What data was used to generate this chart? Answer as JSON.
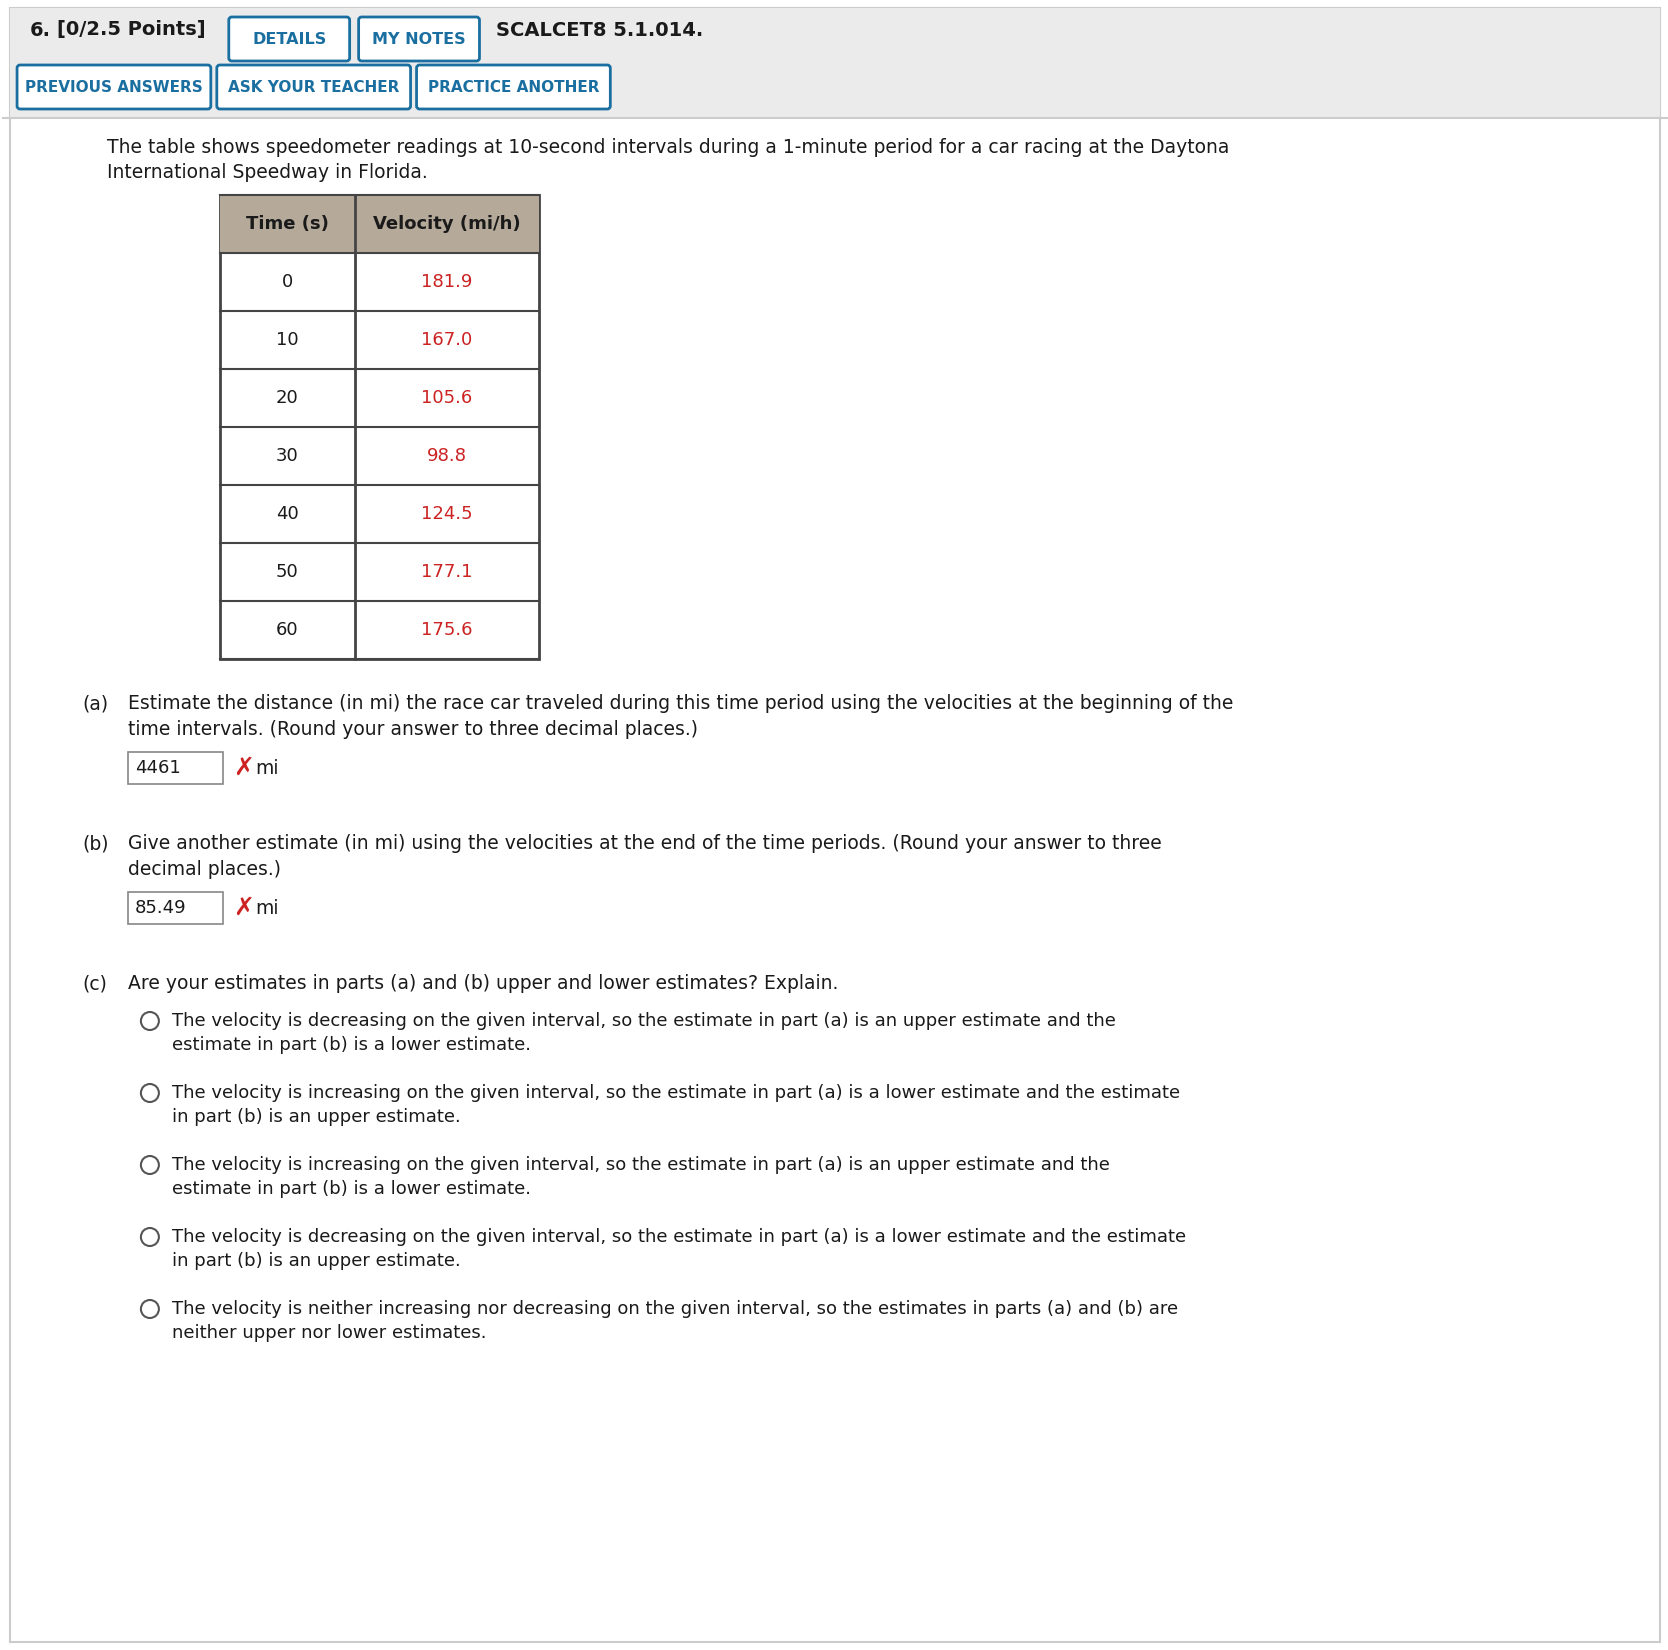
{
  "title_number": "6.",
  "title_points": "[0/2.5 Points]",
  "scalcet": "SCALCET8 5.1.014.",
  "btn_details": "DETAILS",
  "btn_my_notes": "MY NOTES",
  "btn_prev_answers": "PREVIOUS ANSWERS",
  "btn_ask_teacher": "ASK YOUR TEACHER",
  "btn_practice": "PRACTICE ANOTHER",
  "intro_text_line1": "The table shows speedometer readings at 10-second intervals during a 1-minute period for a car racing at the Daytona",
  "intro_text_line2": "International Speedway in Florida.",
  "table_headers": [
    "Time (s)",
    "Velocity (mi/h)"
  ],
  "table_times": [
    "0",
    "10",
    "20",
    "30",
    "40",
    "50",
    "60"
  ],
  "table_velocities": [
    "181.9",
    "167.0",
    "105.6",
    "98.8",
    "124.5",
    "177.1",
    "175.6"
  ],
  "part_a_label": "(a)",
  "part_a_text_line1": "Estimate the distance (in mi) the race car traveled during this time period using the velocities at the beginning of the",
  "part_a_text_line2": "time intervals. (Round your answer to three decimal places.)",
  "part_a_answer": "4461",
  "part_a_unit": "mi",
  "part_b_label": "(b)",
  "part_b_text_line1": "Give another estimate (in mi) using the velocities at the end of the time periods. (Round your answer to three",
  "part_b_text_line2": "decimal places.)",
  "part_b_answer": "85.49",
  "part_b_unit": "mi",
  "part_c_label": "(c)",
  "part_c_text": "Are your estimates in parts (a) and (b) upper and lower estimates? Explain.",
  "options": [
    [
      "The velocity is decreasing on the given interval, so the estimate in part (a) is an upper estimate and the",
      "estimate in part (b) is a lower estimate."
    ],
    [
      "The velocity is increasing on the given interval, so the estimate in part (a) is a lower estimate and the estimate",
      "in part (b) is an upper estimate."
    ],
    [
      "The velocity is increasing on the given interval, so the estimate in part (a) is an upper estimate and the",
      "estimate in part (b) is a lower estimate."
    ],
    [
      "The velocity is decreasing on the given interval, so the estimate in part (a) is a lower estimate and the estimate",
      "in part (b) is an upper estimate."
    ],
    [
      "The velocity is neither increasing nor decreasing on the given interval, so the estimates in parts (a) and (b) are",
      "neither upper nor lower estimates."
    ]
  ],
  "bg_color": "#f0f0f0",
  "white": "#ffffff",
  "blue_btn": "#1a6fa0",
  "red_color": "#cc2222",
  "dark_text": "#1a1a1a",
  "gray_header": "#b5a99a",
  "table_border": "#444444",
  "input_border": "#aaaaaa",
  "header_bg": "#ebebeb"
}
